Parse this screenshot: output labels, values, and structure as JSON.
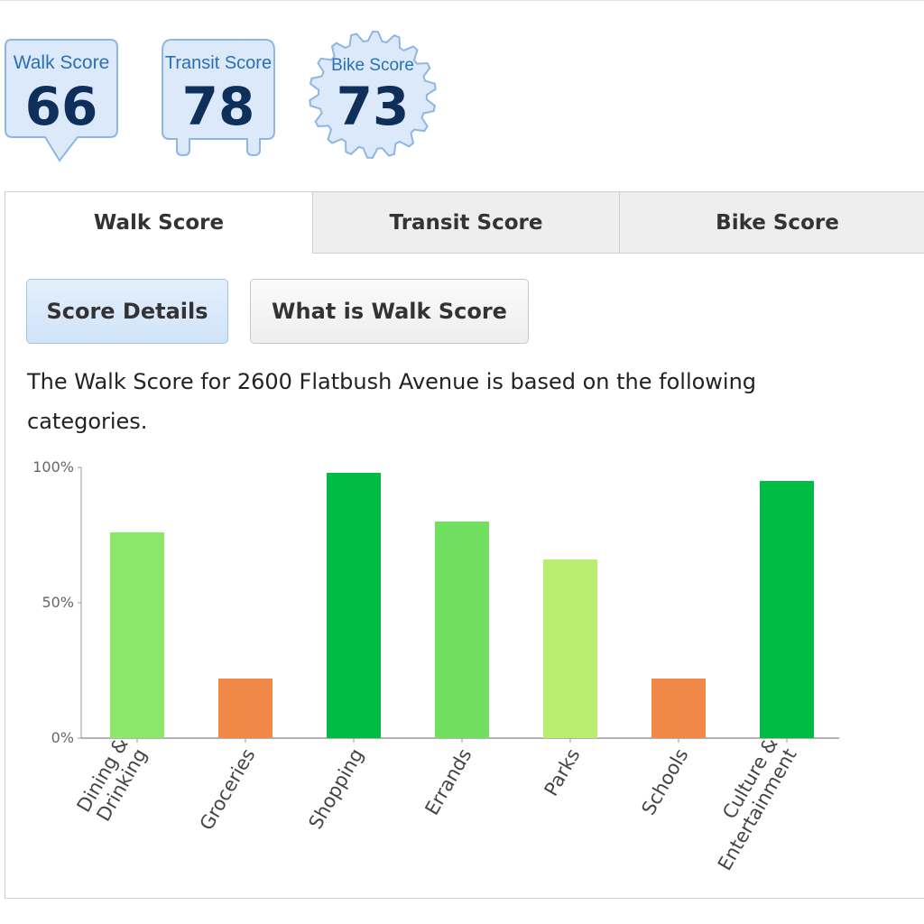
{
  "badges": [
    {
      "title": "Walk Score",
      "value": "66"
    },
    {
      "title": "Transit Score",
      "value": "78"
    },
    {
      "title": "Bike Score",
      "value": "73"
    }
  ],
  "tabs": [
    {
      "label": "Walk Score",
      "active": true
    },
    {
      "label": "Transit Score",
      "active": false
    },
    {
      "label": "Bike Score",
      "active": false
    }
  ],
  "buttons": {
    "score_details": "Score Details",
    "what_is": "What is Walk Score"
  },
  "description": "The Walk Score for 2600 Flatbush Avenue is based on the following categories.",
  "colors": {
    "badge_fill": "#dbe9fa",
    "badge_stroke": "#8fb6e3",
    "axis": "#9a9a9a"
  },
  "chart_data": {
    "type": "bar",
    "categories": [
      [
        "Dining &",
        "Drinking"
      ],
      [
        "Groceries"
      ],
      [
        "Shopping"
      ],
      [
        "Errands"
      ],
      [
        "Parks"
      ],
      [
        "Schools"
      ],
      [
        "Culture &",
        "Entertainment"
      ]
    ],
    "values": [
      76,
      22,
      98,
      80,
      66,
      22,
      95
    ],
    "colors": [
      "#8be86a",
      "#f08847",
      "#00bb44",
      "#72de60",
      "#b8ed70",
      "#f08847",
      "#00bb44"
    ],
    "yticks": [
      "0%",
      "50%",
      "100%"
    ],
    "ylim": [
      0,
      100
    ],
    "grid": false
  }
}
